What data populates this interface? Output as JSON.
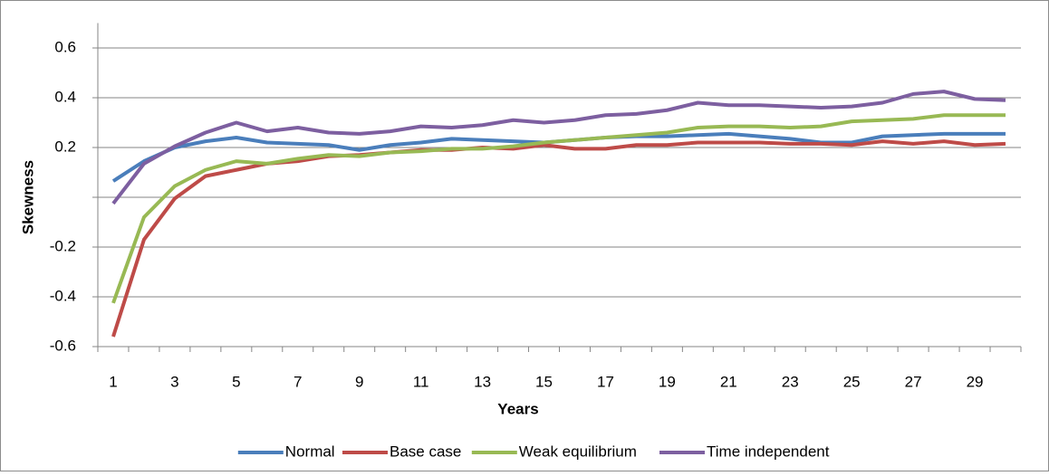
{
  "chart_data": {
    "type": "line",
    "x_label": "Years",
    "y_label": "Skewness",
    "categories": [
      "1",
      null,
      "3",
      null,
      "5",
      null,
      "7",
      null,
      "9",
      null,
      "11",
      null,
      "13",
      null,
      "15",
      null,
      "17",
      null,
      "19",
      null,
      "21",
      null,
      "23",
      null,
      "25",
      null,
      "27",
      null,
      "29",
      null
    ],
    "series": [
      {
        "name": "Normal",
        "color": "#4a7ebb",
        "values": [
          0.065,
          0.145,
          0.2,
          0.225,
          0.24,
          0.22,
          0.215,
          0.21,
          0.19,
          0.21,
          0.22,
          0.235,
          0.23,
          0.225,
          0.22,
          0.23,
          0.24,
          0.245,
          0.245,
          0.25,
          0.255,
          0.245,
          0.235,
          0.22,
          0.22,
          0.245,
          0.25,
          0.255,
          0.255,
          0.255
        ]
      },
      {
        "name": "Base case",
        "color": "#be4b48",
        "values": [
          -0.56,
          -0.17,
          -0.005,
          0.085,
          0.11,
          0.135,
          0.145,
          0.165,
          0.17,
          0.18,
          0.19,
          0.19,
          0.2,
          0.195,
          0.21,
          0.195,
          0.195,
          0.21,
          0.21,
          0.22,
          0.22,
          0.22,
          0.215,
          0.215,
          0.21,
          0.225,
          0.215,
          0.225,
          0.21,
          0.215
        ]
      },
      {
        "name": "Weak equilibrium",
        "color": "#98b954",
        "values": [
          -0.425,
          -0.08,
          0.045,
          0.11,
          0.145,
          0.135,
          0.155,
          0.17,
          0.165,
          0.18,
          0.185,
          0.195,
          0.195,
          0.205,
          0.22,
          0.23,
          0.24,
          0.25,
          0.26,
          0.28,
          0.285,
          0.285,
          0.28,
          0.285,
          0.305,
          0.31,
          0.315,
          0.33,
          0.33,
          0.33
        ]
      },
      {
        "name": "Time independent",
        "color": "#7d5fa0",
        "values": [
          -0.025,
          0.135,
          0.205,
          0.26,
          0.3,
          0.265,
          0.28,
          0.26,
          0.255,
          0.265,
          0.285,
          0.28,
          0.29,
          0.31,
          0.3,
          0.31,
          0.33,
          0.335,
          0.35,
          0.38,
          0.37,
          0.37,
          0.365,
          0.36,
          0.365,
          0.38,
          0.415,
          0.425,
          0.395,
          0.39
        ]
      }
    ],
    "ylim": [
      -0.6,
      0.7
    ],
    "yticks": [
      -0.6,
      -0.4,
      {
        "value": -0.2,
        "label": "-0.2"
      },
      {
        "value": 0
      },
      0.2,
      0.4,
      0.6
    ],
    "grid": true,
    "legend": "bottom"
  }
}
